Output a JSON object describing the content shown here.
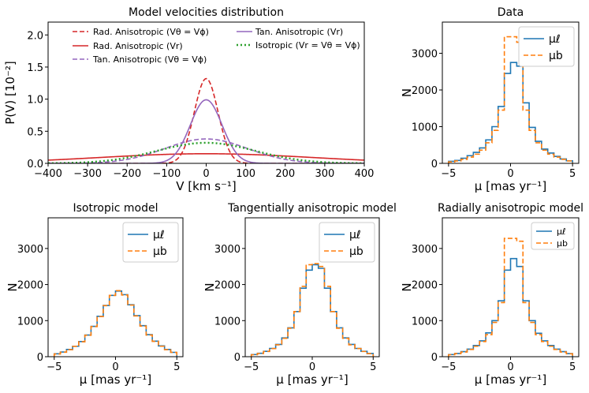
{
  "colors": {
    "blue": "#1f77b4",
    "orange": "#ff7f0e",
    "red": "#d62728",
    "purple": "#9467bd",
    "green": "#2ca02c"
  },
  "chart_data": [
    {
      "id": "model",
      "type": "line",
      "title": "Model velocities distribution",
      "xlabel": "V [km s⁻¹]",
      "ylabel": "P(V) [10⁻²]",
      "xlim": [
        -400,
        400
      ],
      "ylim": [
        0,
        2.2
      ],
      "xticks": [
        -400,
        -300,
        -200,
        -100,
        0,
        100,
        200,
        300,
        400
      ],
      "xtick_labels": [
        "−400",
        "−300",
        "−200",
        "−100",
        "0",
        "100",
        "200",
        "300",
        "400"
      ],
      "yticks": [
        0,
        0.5,
        1.0,
        1.5,
        2.0
      ],
      "ytick_labels": [
        "0.0",
        "0.5",
        "1.0",
        "1.5",
        "2.0"
      ],
      "legend_loc": "top",
      "series": [
        {
          "name": "Rad. Anisotropic (Vθ = Vϕ)",
          "color": "red",
          "dash": "dashed",
          "shape": "gaussian",
          "peak": 1.32,
          "sigma": 30
        },
        {
          "name": "Rad. Anisotropic (Vr)",
          "color": "red",
          "dash": "solid",
          "shape": "gaussian",
          "peak": 0.15,
          "sigma": 270
        },
        {
          "name": "Tan. Anisotropic (Vθ = Vϕ)",
          "color": "purple",
          "dash": "dashed",
          "shape": "gaussian",
          "peak": 0.38,
          "sigma": 105
        },
        {
          "name": "Tan. Anisotropic (Vr)",
          "color": "purple",
          "dash": "solid",
          "shape": "gaussian",
          "peak": 0.99,
          "sigma": 40
        },
        {
          "name": "Isotropic (Vr = Vθ = Vϕ)",
          "color": "green",
          "dash": "dotted",
          "shape": "gaussian",
          "peak": 0.32,
          "sigma": 125
        }
      ]
    },
    {
      "id": "data",
      "type": "bar",
      "title": "Data",
      "xlabel": "μ [mas yr⁻¹]",
      "ylabel": "N",
      "xlim": [
        -5.5,
        5.5
      ],
      "ylim": [
        0,
        3850
      ],
      "xticks": [
        -5,
        0,
        5
      ],
      "xtick_labels": [
        "−5",
        "0",
        "5"
      ],
      "yticks": [
        0,
        1000,
        2000,
        3000
      ],
      "ytick_labels": [
        "0",
        "1000",
        "2000",
        "3000"
      ],
      "legend_loc": "top-right",
      "legend_size": "large",
      "bin_edges": [
        -5,
        -4.5,
        -4,
        -3.5,
        -3,
        -2.5,
        -2,
        -1.5,
        -1,
        -0.5,
        0,
        0.5,
        1,
        1.5,
        2,
        2.5,
        3,
        3.5,
        4,
        4.5,
        5
      ],
      "series": [
        {
          "name": "μℓ",
          "color": "blue",
          "dash": "solid",
          "values": [
            55,
            80,
            140,
            210,
            300,
            420,
            640,
            1000,
            1550,
            2450,
            2750,
            2650,
            1650,
            980,
            600,
            390,
            280,
            190,
            120,
            70
          ]
        },
        {
          "name": "μb",
          "color": "orange",
          "dash": "dashed",
          "values": [
            40,
            65,
            110,
            170,
            250,
            360,
            560,
            900,
            1450,
            3450,
            3450,
            3300,
            1450,
            900,
            560,
            360,
            250,
            170,
            110,
            65
          ]
        }
      ]
    },
    {
      "id": "iso",
      "type": "bar",
      "title": "Isotropic model",
      "xlabel": "μ [mas yr⁻¹]",
      "ylabel": "N",
      "xlim": [
        -5.5,
        5.5
      ],
      "ylim": [
        0,
        3850
      ],
      "xticks": [
        -5,
        0,
        5
      ],
      "xtick_labels": [
        "−5",
        "0",
        "5"
      ],
      "yticks": [
        0,
        1000,
        2000,
        3000
      ],
      "ytick_labels": [
        "0",
        "1000",
        "2000",
        "3000"
      ],
      "legend_loc": "top-right",
      "legend_size": "large",
      "bin_edges": [
        -5,
        -4.5,
        -4,
        -3.5,
        -3,
        -2.5,
        -2,
        -1.5,
        -1,
        -0.5,
        0,
        0.5,
        1,
        1.5,
        2,
        2.5,
        3,
        3.5,
        4,
        4.5,
        5
      ],
      "series": [
        {
          "name": "μℓ",
          "color": "blue",
          "dash": "solid",
          "values": [
            80,
            130,
            200,
            290,
            420,
            600,
            840,
            1120,
            1420,
            1700,
            1820,
            1720,
            1440,
            1140,
            860,
            610,
            430,
            300,
            200,
            120
          ]
        },
        {
          "name": "μb",
          "color": "orange",
          "dash": "dashed",
          "values": [
            75,
            125,
            195,
            285,
            415,
            595,
            835,
            1115,
            1415,
            1700,
            1830,
            1710,
            1430,
            1130,
            850,
            600,
            425,
            290,
            195,
            120
          ]
        }
      ]
    },
    {
      "id": "tan",
      "type": "bar",
      "title": "Tangentially anisotropic model",
      "xlabel": "μ [mas yr⁻¹]",
      "ylabel": "N",
      "xlim": [
        -5.5,
        5.5
      ],
      "ylim": [
        0,
        3850
      ],
      "xticks": [
        -5,
        0,
        5
      ],
      "xtick_labels": [
        "−5",
        "0",
        "5"
      ],
      "yticks": [
        0,
        1000,
        2000,
        3000
      ],
      "ytick_labels": [
        "0",
        "1000",
        "2000",
        "3000"
      ],
      "legend_loc": "top-right",
      "legend_size": "large",
      "bin_edges": [
        -5,
        -4.5,
        -4,
        -3.5,
        -3,
        -2.5,
        -2,
        -1.5,
        -1,
        -0.5,
        0,
        0.5,
        1,
        1.5,
        2,
        2.5,
        3,
        3.5,
        4,
        4.5,
        5
      ],
      "series": [
        {
          "name": "μℓ",
          "color": "blue",
          "dash": "solid",
          "values": [
            60,
            95,
            150,
            230,
            340,
            520,
            800,
            1250,
            1900,
            2400,
            2550,
            2450,
            1900,
            1250,
            800,
            520,
            340,
            230,
            150,
            90
          ]
        },
        {
          "name": "μb",
          "color": "orange",
          "dash": "dashed",
          "values": [
            55,
            90,
            145,
            225,
            330,
            510,
            790,
            1250,
            1950,
            2550,
            2580,
            2500,
            1950,
            1250,
            790,
            510,
            330,
            225,
            145,
            85
          ]
        }
      ]
    },
    {
      "id": "rad",
      "type": "bar",
      "title": "Radially anisotropic model",
      "xlabel": "μ [mas yr⁻¹]",
      "ylabel": "N",
      "xlim": [
        -5.5,
        5.5
      ],
      "ylim": [
        0,
        3850
      ],
      "xticks": [
        -5,
        0,
        5
      ],
      "xtick_labels": [
        "−5",
        "0",
        "5"
      ],
      "yticks": [
        0,
        1000,
        2000,
        3000
      ],
      "ytick_labels": [
        "0",
        "1000",
        "2000",
        "3000"
      ],
      "legend_loc": "top-right",
      "legend_size": "small",
      "bin_edges": [
        -5,
        -4.5,
        -4,
        -3.5,
        -3,
        -2.5,
        -2,
        -1.5,
        -1,
        -0.5,
        0,
        0.5,
        1,
        1.5,
        2,
        2.5,
        3,
        3.5,
        4,
        4.5,
        5
      ],
      "series": [
        {
          "name": "μℓ",
          "color": "blue",
          "dash": "solid",
          "values": [
            60,
            90,
            140,
            210,
            310,
            440,
            660,
            1000,
            1550,
            2400,
            2720,
            2500,
            1550,
            1000,
            650,
            440,
            310,
            210,
            140,
            85
          ]
        },
        {
          "name": "μb",
          "color": "orange",
          "dash": "dashed",
          "values": [
            55,
            85,
            130,
            200,
            290,
            420,
            610,
            950,
            1500,
            3280,
            3280,
            3200,
            1500,
            950,
            610,
            420,
            290,
            200,
            130,
            80
          ]
        }
      ]
    }
  ]
}
